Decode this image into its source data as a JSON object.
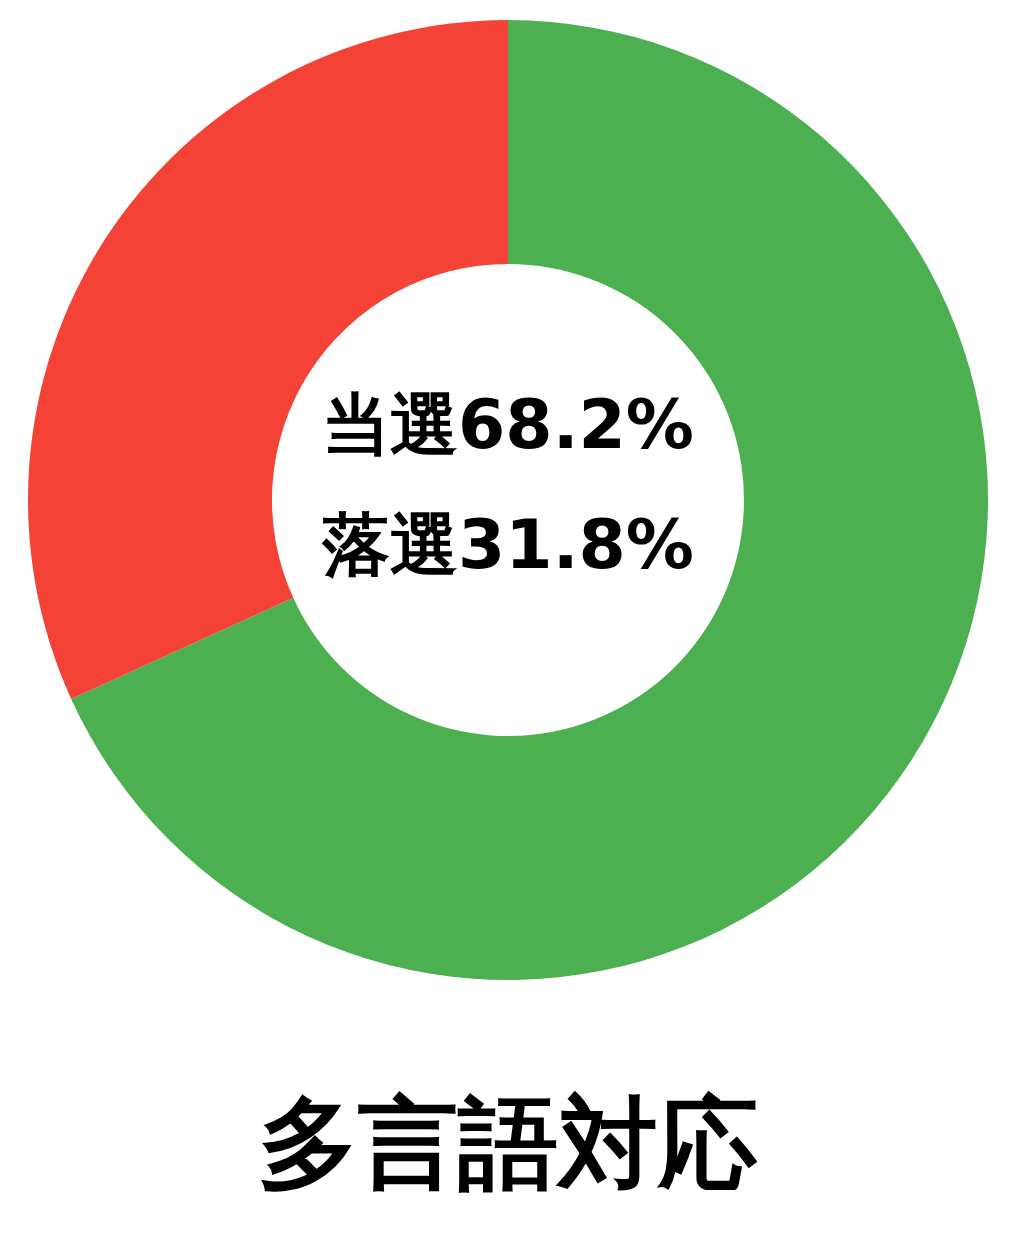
{
  "chart_data": {
    "type": "donut",
    "title": "多言語対応",
    "categories": [
      null,
      null
    ],
    "values": [
      68.2,
      31.8
    ],
    "colors": [
      "#4caf50",
      "#f44336"
    ],
    "annotations": [
      "当選68.2%",
      "落選31.8%"
    ]
  }
}
